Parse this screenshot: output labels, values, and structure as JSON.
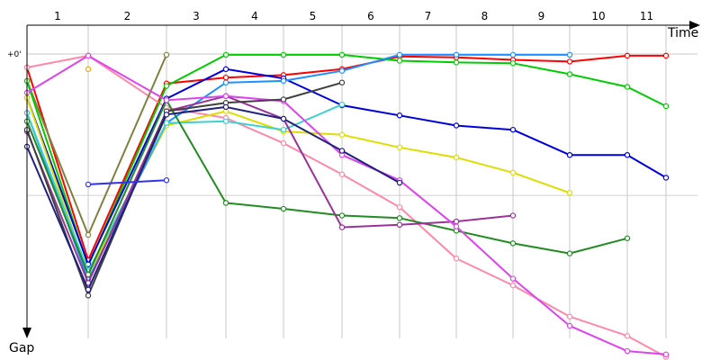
{
  "chart_data": {
    "type": "line",
    "xlabel": "Time",
    "ylabel": "Gap",
    "zero_label": "+0'",
    "columns": [
      "1",
      "2",
      "3",
      "4",
      "5",
      "6",
      "7",
      "8",
      "9",
      "10",
      "11"
    ],
    "column_boundaries": [
      1,
      2,
      3,
      4,
      5,
      6,
      7,
      8,
      9,
      10,
      11,
      12
    ],
    "grid": true,
    "series": [
      {
        "color": "#ff0000",
        "points": [
          [
            1,
            0.16
          ],
          [
            2,
            2.45
          ],
          [
            3,
            0.35
          ],
          [
            4,
            0.28
          ],
          [
            5,
            0.25
          ],
          [
            6,
            0.18
          ],
          [
            7,
            0.03
          ],
          [
            8,
            0.04
          ],
          [
            9,
            0.07
          ],
          [
            10,
            0.09
          ],
          [
            11,
            0.02
          ],
          [
            12,
            0.02
          ]
        ]
      },
      {
        "color": "#ff88aa",
        "points": [
          [
            1,
            0.16
          ],
          [
            2,
            0.02
          ],
          [
            3,
            0.64
          ],
          [
            4,
            0.76
          ],
          [
            5,
            1.06
          ],
          [
            6,
            1.43
          ],
          [
            7,
            1.82
          ],
          [
            8,
            2.43
          ],
          [
            9,
            2.75
          ],
          [
            10,
            3.12
          ],
          [
            11,
            3.35
          ],
          [
            12,
            3.6
          ]
        ]
      },
      {
        "color": "#ffa500",
        "points": [
          [
            2,
            0.18
          ]
        ]
      },
      {
        "color": "#808040",
        "points": [
          [
            1,
            0.32
          ],
          [
            2,
            2.15
          ],
          [
            3,
            0.01
          ]
        ]
      },
      {
        "color": "#00cc00",
        "points": [
          [
            1,
            0.32
          ],
          [
            2,
            2.52
          ],
          [
            3,
            0.38
          ],
          [
            4,
            0.01
          ],
          [
            5,
            0.01
          ],
          [
            6,
            0.01
          ],
          [
            7,
            0.08
          ],
          [
            8,
            0.1
          ],
          [
            9,
            0.11
          ],
          [
            10,
            0.24
          ],
          [
            11,
            0.39
          ],
          [
            12,
            0.62
          ]
        ]
      },
      {
        "color": "#0000dd",
        "points": [
          [
            1,
            0.52
          ],
          [
            2,
            2.5
          ],
          [
            3,
            0.53
          ],
          [
            4,
            0.18
          ],
          [
            5,
            0.29
          ],
          [
            6,
            0.61
          ],
          [
            7,
            0.73
          ],
          [
            8,
            0.85
          ],
          [
            9,
            0.9
          ],
          [
            10,
            1.2
          ],
          [
            11,
            1.2
          ],
          [
            12,
            1.47
          ]
        ]
      },
      {
        "color": "#dddd00",
        "points": [
          [
            1,
            0.52
          ],
          [
            2,
            2.62
          ],
          [
            3,
            0.85
          ],
          [
            4,
            0.68
          ],
          [
            5,
            0.92
          ],
          [
            6,
            0.96
          ],
          [
            7,
            1.11
          ],
          [
            8,
            1.23
          ],
          [
            9,
            1.41
          ],
          [
            10,
            1.65
          ]
        ]
      },
      {
        "color": "#1e90ff",
        "points": [
          [
            1,
            0.7
          ],
          [
            2,
            2.68
          ],
          [
            3,
            0.82
          ],
          [
            4,
            0.34
          ],
          [
            5,
            0.32
          ],
          [
            6,
            0.2
          ],
          [
            7,
            0.01
          ],
          [
            8,
            0.01
          ],
          [
            9,
            0.01
          ],
          [
            10,
            0.01
          ]
        ]
      },
      {
        "color": "#40d0d0",
        "points": [
          [
            1,
            0.7
          ],
          [
            2,
            2.58
          ],
          [
            3,
            0.82
          ],
          [
            4,
            0.8
          ],
          [
            5,
            0.9
          ],
          [
            6,
            0.6
          ]
        ]
      },
      {
        "color": "#228b22",
        "points": [
          [
            1,
            0.8
          ],
          [
            2,
            2.62
          ],
          [
            3,
            0.55
          ],
          [
            4,
            1.77
          ],
          [
            5,
            1.84
          ],
          [
            6,
            1.92
          ],
          [
            7,
            1.95
          ],
          [
            8,
            2.1
          ],
          [
            9,
            2.25
          ],
          [
            10,
            2.37
          ],
          [
            11,
            2.19
          ]
        ]
      },
      {
        "color": "#993399",
        "points": [
          [
            1,
            0.92
          ],
          [
            2,
            2.72
          ],
          [
            3,
            0.68
          ],
          [
            4,
            0.5
          ],
          [
            5,
            0.77
          ],
          [
            6,
            2.06
          ],
          [
            7,
            2.03
          ],
          [
            8,
            1.99
          ],
          [
            9,
            1.92
          ]
        ]
      },
      {
        "color": "#dd44ee",
        "points": [
          [
            1,
            0.46
          ],
          [
            2,
            0.02
          ],
          [
            3,
            0.55
          ],
          [
            4,
            0.5
          ],
          [
            5,
            0.56
          ],
          [
            6,
            1.2
          ],
          [
            7,
            1.5
          ],
          [
            8,
            2.05
          ],
          [
            9,
            2.67
          ],
          [
            10,
            3.23
          ],
          [
            11,
            3.53
          ],
          [
            12,
            3.57
          ]
        ]
      },
      {
        "color": "#404040",
        "points": [
          [
            1,
            0.9
          ],
          [
            2,
            2.87
          ],
          [
            3,
            0.68
          ],
          [
            4,
            0.58
          ],
          [
            5,
            0.54
          ],
          [
            6,
            0.34
          ]
        ]
      },
      {
        "color": "#202080",
        "points": [
          [
            1,
            1.1
          ],
          [
            2,
            2.8
          ],
          [
            3,
            0.72
          ],
          [
            4,
            0.63
          ],
          [
            5,
            0.77
          ],
          [
            6,
            1.15
          ],
          [
            7,
            1.53
          ]
        ]
      },
      {
        "color": "#3333ee",
        "points": [
          [
            2,
            1.55
          ],
          [
            3,
            1.5
          ]
        ]
      }
    ]
  }
}
